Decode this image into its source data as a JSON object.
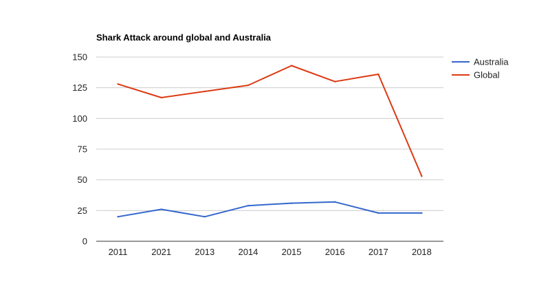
{
  "chart_data": {
    "type": "line",
    "title": "Shark Attack around global and Australia",
    "xlabel": "",
    "ylabel": "",
    "categories": [
      "2011",
      "2021",
      "2013",
      "2014",
      "2015",
      "2016",
      "2017",
      "2018"
    ],
    "ylim": [
      0,
      150
    ],
    "yticks": [
      0,
      25,
      50,
      75,
      100,
      125,
      150
    ],
    "grid": true,
    "legend_position": "right",
    "series": [
      {
        "name": "Australia",
        "color": "#3366cc",
        "values": [
          20,
          26,
          20,
          29,
          31,
          32,
          23,
          23
        ]
      },
      {
        "name": "Global",
        "color": "#dc3912",
        "values": [
          128,
          117,
          122,
          127,
          143,
          130,
          136,
          53
        ]
      }
    ]
  }
}
